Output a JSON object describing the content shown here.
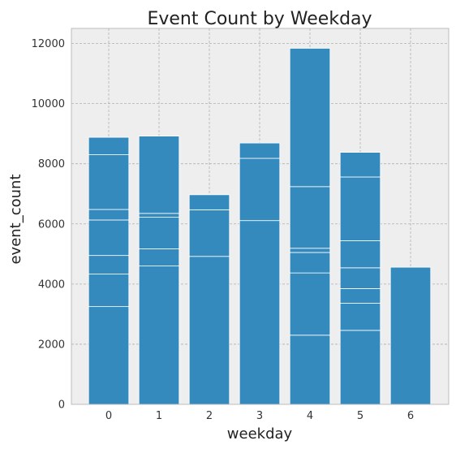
{
  "chart_data": {
    "type": "bar",
    "stacked": true,
    "title": "Event Count by Weekday",
    "xlabel": "weekday",
    "ylabel": "event_count",
    "categories": [
      "0",
      "1",
      "2",
      "3",
      "4",
      "5",
      "6"
    ],
    "ylim": [
      0,
      12500
    ],
    "yticks": [
      0,
      2000,
      4000,
      6000,
      8000,
      10000,
      12000
    ],
    "grid": true,
    "bar_color": "#348ABD",
    "plot_background": "#EEEEEE",
    "values": [
      8880,
      8920,
      6970,
      8690,
      11840,
      8380,
      4560
    ],
    "segment_boundaries": [
      [
        0,
        3250,
        4330,
        4950,
        6130,
        6480,
        8300,
        8880
      ],
      [
        0,
        4600,
        5170,
        6220,
        6350,
        8920
      ],
      [
        0,
        4920,
        6470,
        6970
      ],
      [
        0,
        6110,
        8180,
        8690
      ],
      [
        0,
        2300,
        4370,
        5050,
        5190,
        7240,
        11840
      ],
      [
        0,
        2460,
        3360,
        3850,
        4540,
        5440,
        7560,
        8380
      ],
      [
        0,
        4560
      ]
    ]
  }
}
